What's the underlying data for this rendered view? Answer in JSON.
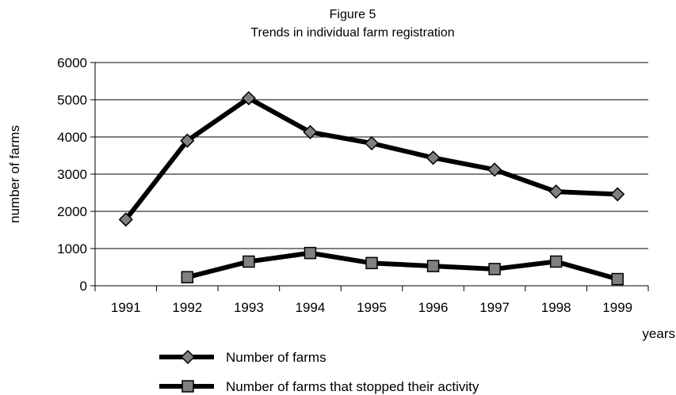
{
  "chart_data": {
    "type": "line",
    "title": "Figure 5",
    "subtitle": "Trends in individual farm registration",
    "xlabel": "years",
    "ylabel": "number of farms",
    "categories": [
      "1991",
      "1992",
      "1993",
      "1994",
      "1995",
      "1996",
      "1997",
      "1998",
      "1999"
    ],
    "yticks": [
      "0",
      "1000",
      "2000",
      "3000",
      "4000",
      "5000",
      "6000"
    ],
    "ylim": [
      0,
      6000
    ],
    "grid": true,
    "legend_position": "bottom",
    "series": [
      {
        "name": "Number of farms",
        "marker": "diamond",
        "values": [
          1780,
          3900,
          5040,
          4130,
          3830,
          3440,
          3120,
          2530,
          2460
        ]
      },
      {
        "name": "Number of farms that stopped their activity",
        "marker": "square",
        "values": [
          null,
          230,
          650,
          880,
          610,
          530,
          450,
          650,
          180
        ]
      }
    ],
    "colors": {
      "line": "#000000",
      "marker_fill": "#808080"
    }
  }
}
